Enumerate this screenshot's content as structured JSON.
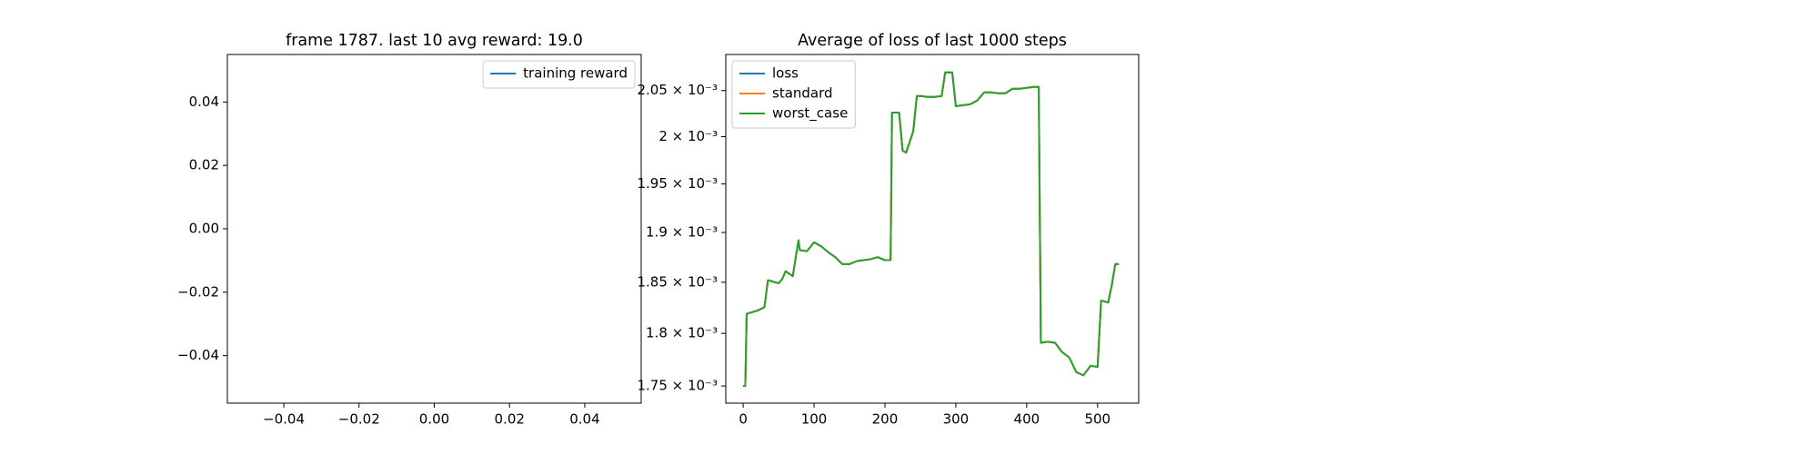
{
  "chart_data": [
    {
      "type": "line",
      "title": "frame 1787. last 10 avg reward: 19.0",
      "x": [],
      "series": [
        {
          "name": "training reward",
          "color": "#1f77b4",
          "values": []
        }
      ],
      "xlim": [
        -0.055,
        0.055
      ],
      "xticks": [
        {
          "value": -0.04,
          "label": "−0.04"
        },
        {
          "value": -0.02,
          "label": "−0.02"
        },
        {
          "value": 0,
          "label": "0.00"
        },
        0.02,
        0.04
      ],
      "ylim": [
        -0.055,
        0.055
      ],
      "yticks": [
        {
          "value": -0.04,
          "label": "−0.04"
        },
        {
          "value": -0.02,
          "label": "−0.02"
        },
        {
          "value": 0,
          "label": "0.00"
        },
        0.02,
        0.04
      ],
      "legend": "upper right",
      "grid": false,
      "log": false
    },
    {
      "type": "line",
      "title": "Average of loss of last 1000 steps",
      "x": [
        0,
        3,
        5,
        20,
        30,
        35,
        50,
        55,
        60,
        70,
        78,
        80,
        90,
        100,
        110,
        120,
        130,
        140,
        150,
        160,
        170,
        180,
        190,
        200,
        208,
        210,
        220,
        225,
        230,
        240,
        245,
        250,
        260,
        270,
        280,
        285,
        295,
        300,
        310,
        320,
        330,
        340,
        350,
        360,
        370,
        380,
        390,
        400,
        410,
        417,
        420,
        430,
        440,
        450,
        460,
        470,
        480,
        490,
        500,
        505,
        515,
        520,
        525,
        530
      ],
      "series": [
        {
          "name": "loss",
          "color": "#1f77b4",
          "values": [
            0.00175,
            0.00175,
            0.001819,
            0.001822,
            0.0018255,
            0.001852,
            0.001849,
            0.001853,
            0.001861,
            0.001856,
            0.001892,
            0.001882,
            0.001881,
            0.00189,
            0.001886,
            0.00188,
            0.001875,
            0.001868,
            0.001868,
            0.001871,
            0.001872,
            0.001873,
            0.001875,
            0.001872,
            0.001872,
            0.002026,
            0.002026,
            0.001985,
            0.001983,
            0.002006,
            0.002044,
            0.002044,
            0.002043,
            0.002043,
            0.002044,
            0.00207,
            0.00207,
            0.002033,
            0.002034,
            0.002035,
            0.002039,
            0.002048,
            0.002048,
            0.002047,
            0.002047,
            0.002052,
            0.002052,
            0.002053,
            0.002054,
            0.002054,
            0.001791,
            0.001792,
            0.001791,
            0.001782,
            0.001777,
            0.001763,
            0.00176,
            0.001769,
            0.001768,
            0.001832,
            0.00183,
            0.001847,
            0.001868,
            0.001868
          ]
        },
        {
          "name": "standard",
          "color": "#ff7f0e",
          "values": [
            0.00175,
            0.00175,
            0.001819,
            0.001822,
            0.0018255,
            0.001852,
            0.001849,
            0.001853,
            0.001861,
            0.001856,
            0.001892,
            0.001882,
            0.001881,
            0.00189,
            0.001886,
            0.00188,
            0.001875,
            0.001868,
            0.001868,
            0.001871,
            0.001872,
            0.001873,
            0.001875,
            0.001872,
            0.001872,
            0.002026,
            0.002026,
            0.001985,
            0.001983,
            0.002006,
            0.002044,
            0.002044,
            0.002043,
            0.002043,
            0.002044,
            0.00207,
            0.00207,
            0.002033,
            0.002034,
            0.002035,
            0.002039,
            0.002048,
            0.002048,
            0.002047,
            0.002047,
            0.002052,
            0.002052,
            0.002053,
            0.002054,
            0.002054,
            0.001791,
            0.001792,
            0.001791,
            0.001782,
            0.001777,
            0.001763,
            0.00176,
            0.001769,
            0.001768,
            0.001832,
            0.00183,
            0.001847,
            0.001868,
            0.001868
          ]
        },
        {
          "name": "worst_case",
          "color": "#2ca02c",
          "values": [
            0.00175,
            0.00175,
            0.001819,
            0.001822,
            0.0018255,
            0.001852,
            0.001849,
            0.001853,
            0.001861,
            0.001856,
            0.001892,
            0.001882,
            0.001881,
            0.00189,
            0.001886,
            0.00188,
            0.001875,
            0.001868,
            0.001868,
            0.001871,
            0.001872,
            0.001873,
            0.001875,
            0.001872,
            0.001872,
            0.002026,
            0.002026,
            0.001985,
            0.001983,
            0.002006,
            0.002044,
            0.002044,
            0.002043,
            0.002043,
            0.002044,
            0.00207,
            0.00207,
            0.002033,
            0.002034,
            0.002035,
            0.002039,
            0.002048,
            0.002048,
            0.002047,
            0.002047,
            0.002052,
            0.002052,
            0.002053,
            0.002054,
            0.002054,
            0.001791,
            0.001792,
            0.001791,
            0.001782,
            0.001777,
            0.001763,
            0.00176,
            0.001769,
            0.001768,
            0.001832,
            0.00183,
            0.001847,
            0.001868,
            0.001868
          ]
        }
      ],
      "xlim": [
        -24.5,
        558
      ],
      "xticks": [
        0,
        100,
        200,
        300,
        400,
        500
      ],
      "ylim": [
        0.001734,
        0.00209
      ],
      "yticks": [
        {
          "value": 0.00175,
          "label": "1.75 × 10⁻³"
        },
        {
          "value": 0.0018,
          "label": "1.8 × 10⁻³"
        },
        {
          "value": 0.00185,
          "label": "1.85 × 10⁻³"
        },
        {
          "value": 0.0019,
          "label": "1.9 × 10⁻³"
        },
        {
          "value": 0.00195,
          "label": "1.95 × 10⁻³"
        },
        {
          "value": 0.002,
          "label": "2 × 10⁻³"
        },
        {
          "value": 0.00205,
          "label": "2.05 × 10⁻³"
        }
      ],
      "legend": "upper left",
      "grid": false,
      "log": true
    }
  ]
}
